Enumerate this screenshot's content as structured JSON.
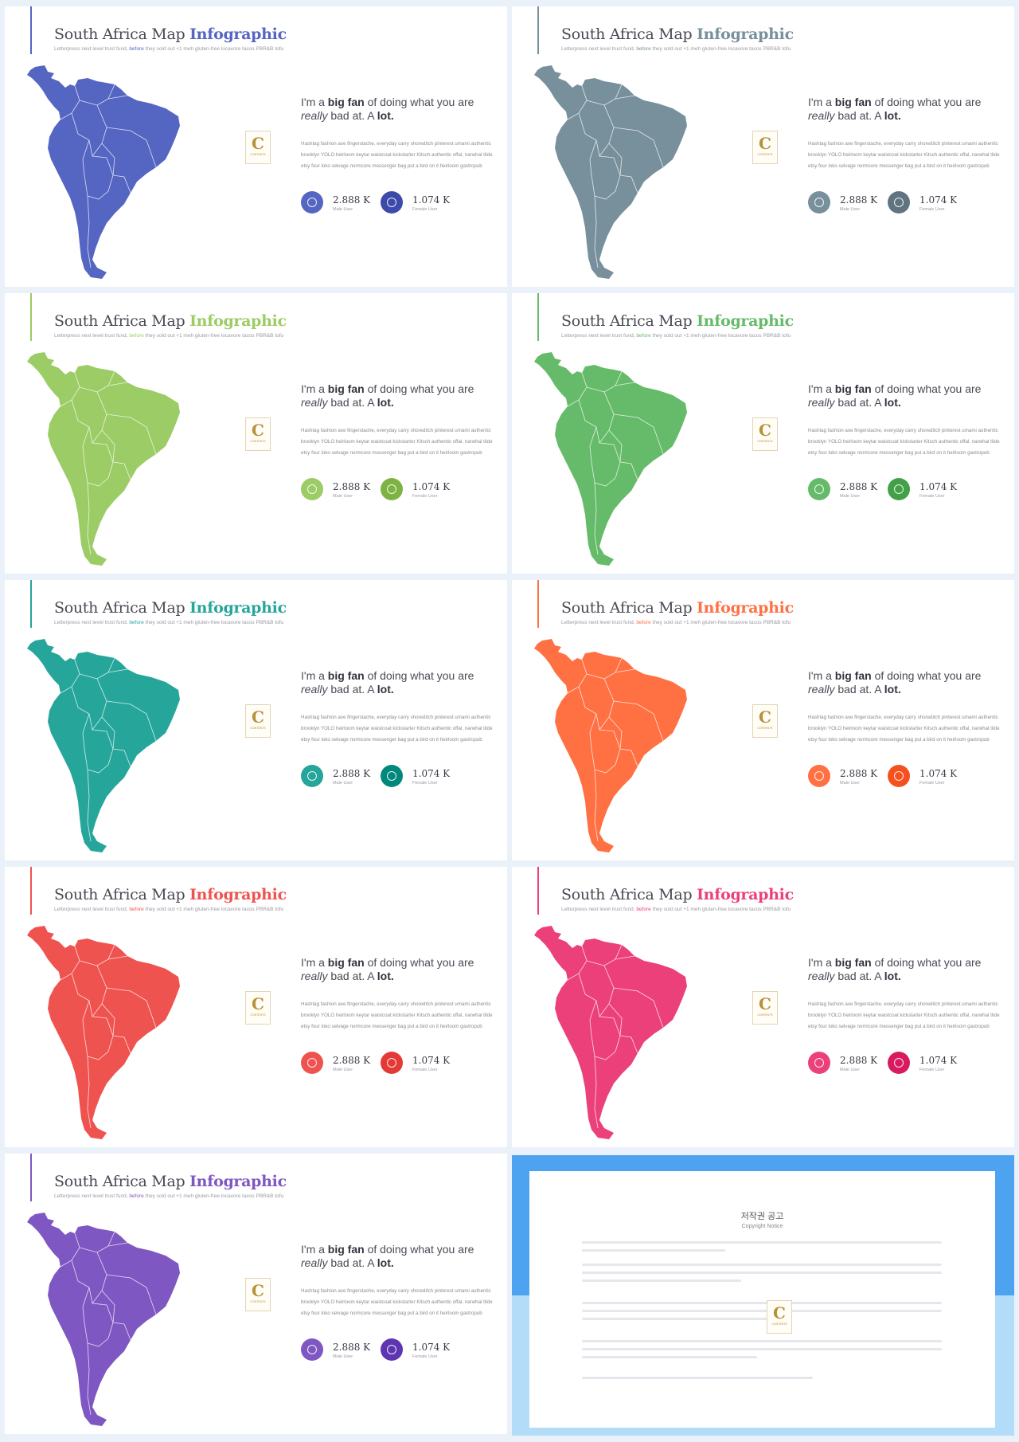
{
  "slide_common": {
    "title_main": "South Africa Map",
    "title_highlight": "Infographic",
    "subtitle_pre": "Letterpress next level trust fund, ",
    "subtitle_highlight": "before",
    "subtitle_post": " they sold out +1 meh gluten-free locavore tacos PBR&B tofu",
    "headline_1": "I'm a ",
    "headline_bold_1": "big fan",
    "headline_2": " of doing what you are",
    "headline_italic": "really",
    "headline_3": " bad at. A ",
    "headline_bold_2": "lot.",
    "paragraph": "Hashtag fashion axe fingerstache, everyday carry shoreditch pinterest umami authentic brooklyn YOLO heirloom keytar waistcoat kickstarter Kitsch authentic offal, narwhal tilde etsy four loko selvage normcore messenger bag put a bird on it heirloom gastropub",
    "stat_1_value": "2.888 K",
    "stat_1_label": "Male User",
    "stat_2_value": "1.074 K",
    "stat_2_label": "Female User",
    "logo_letter": "C",
    "logo_caption": "CONTENTS"
  },
  "slides": [
    {
      "color": "#5565c2",
      "color2": "#3d4aaa"
    },
    {
      "color": "#78909c",
      "color2": "#5f7480"
    },
    {
      "color": "#9ccc65",
      "color2": "#7cb342"
    },
    {
      "color": "#66bb6a",
      "color2": "#43a047"
    },
    {
      "color": "#26a69a",
      "color2": "#00897b"
    },
    {
      "color": "#ff7043",
      "color2": "#f4511e"
    },
    {
      "color": "#ef5350",
      "color2": "#e53935"
    },
    {
      "color": "#ec407a",
      "color2": "#d81b60"
    },
    {
      "color": "#7e57c2",
      "color2": "#5e35b1"
    }
  ],
  "notice": {
    "title": "저작권 공고",
    "subtitle": "Copyright Notice",
    "band_top_color": "#4da3ef",
    "band_bottom_color": "#b2dcf8"
  }
}
